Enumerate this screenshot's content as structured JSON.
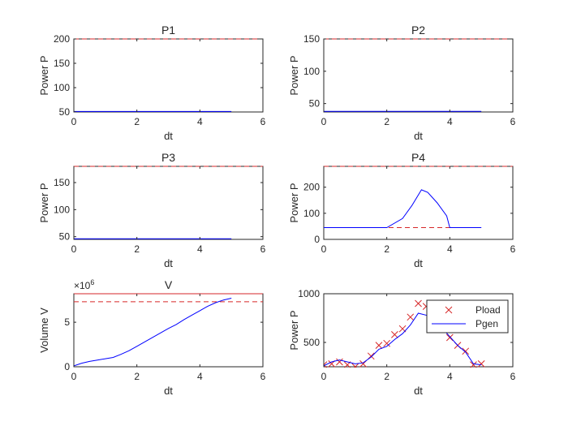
{
  "chart_data": [
    {
      "type": "line",
      "title": "P1",
      "xlabel": "dt",
      "ylabel": "Power P",
      "xlim": [
        0,
        6
      ],
      "ylim": [
        50,
        200
      ],
      "xticks": [
        "0",
        "2",
        "4",
        "6"
      ],
      "yticks": [
        "50",
        "100",
        "150",
        "200"
      ],
      "series": [
        {
          "name": "limit",
          "color": "#d62728",
          "style": "dashed",
          "x": [
            0,
            6
          ],
          "y": [
            200,
            200
          ]
        },
        {
          "name": "P1",
          "color": "#0000ff",
          "style": "solid",
          "x": [
            0,
            5
          ],
          "y": [
            51,
            51
          ]
        }
      ]
    },
    {
      "type": "line",
      "title": "P2",
      "xlabel": "dt",
      "ylabel": "Power P",
      "xlim": [
        0,
        6
      ],
      "ylim": [
        37,
        150
      ],
      "xticks": [
        "0",
        "2",
        "4",
        "6"
      ],
      "yticks": [
        "50",
        "100",
        "150"
      ],
      "series": [
        {
          "name": "limit",
          "color": "#d62728",
          "style": "dashed",
          "x": [
            0,
            6
          ],
          "y": [
            150,
            150
          ]
        },
        {
          "name": "P2",
          "color": "#0000ff",
          "style": "solid",
          "x": [
            0,
            5
          ],
          "y": [
            38,
            38
          ]
        }
      ]
    },
    {
      "type": "line",
      "title": "P3",
      "xlabel": "dt",
      "ylabel": "Power P",
      "xlim": [
        0,
        6
      ],
      "ylim": [
        45,
        180
      ],
      "xticks": [
        "0",
        "2",
        "4",
        "6"
      ],
      "yticks": [
        "50",
        "100",
        "150"
      ],
      "series": [
        {
          "name": "limit",
          "color": "#d62728",
          "style": "dashed",
          "x": [
            0,
            6
          ],
          "y": [
            180,
            180
          ]
        },
        {
          "name": "P3",
          "color": "#0000ff",
          "style": "solid",
          "x": [
            0,
            5
          ],
          "y": [
            46,
            46
          ]
        }
      ]
    },
    {
      "type": "line",
      "title": "P4",
      "xlabel": "dt",
      "ylabel": "Power P",
      "xlim": [
        0,
        6
      ],
      "ylim": [
        0,
        280
      ],
      "xticks": [
        "0",
        "2",
        "4",
        "6"
      ],
      "yticks": [
        "0",
        "100",
        "200"
      ],
      "series": [
        {
          "name": "limit-max",
          "color": "#d62728",
          "style": "dashed",
          "x": [
            0,
            6
          ],
          "y": [
            280,
            280
          ]
        },
        {
          "name": "limit-min",
          "color": "#d62728",
          "style": "dashed",
          "x": [
            0,
            4
          ],
          "y": [
            45,
            45
          ]
        },
        {
          "name": "P4",
          "color": "#0000ff",
          "style": "solid",
          "x": [
            0,
            2,
            2.5,
            2.8,
            3.1,
            3.3,
            3.6,
            3.9,
            4.0,
            5
          ],
          "y": [
            45,
            45,
            80,
            130,
            190,
            180,
            140,
            90,
            45,
            45
          ]
        }
      ]
    },
    {
      "type": "line",
      "title": "V",
      "xlabel": "dt",
      "ylabel": "Volume V",
      "exponent_label": "×10",
      "exponent_power": "6",
      "xlim": [
        0,
        6
      ],
      "ylim": [
        0,
        8.2
      ],
      "xticks": [
        "0",
        "2",
        "4",
        "6"
      ],
      "yticks": [
        "0",
        "5"
      ],
      "series": [
        {
          "name": "V-max",
          "color": "#d62728",
          "style": "solid",
          "x": [
            0,
            6
          ],
          "y": [
            8.2,
            8.2
          ]
        },
        {
          "name": "V-target",
          "color": "#d62728",
          "style": "dashed",
          "x": [
            0,
            6
          ],
          "y": [
            7.3,
            7.3
          ]
        },
        {
          "name": "V",
          "color": "#0000ff",
          "style": "solid",
          "x": [
            0,
            0.25,
            0.5,
            0.75,
            1.0,
            1.25,
            1.5,
            1.75,
            2.0,
            2.25,
            2.5,
            2.75,
            3.0,
            3.25,
            3.5,
            3.75,
            4.0,
            4.25,
            4.5,
            4.75,
            5.0
          ],
          "y": [
            0.1,
            0.4,
            0.6,
            0.75,
            0.9,
            1.05,
            1.4,
            1.8,
            2.3,
            2.8,
            3.3,
            3.8,
            4.3,
            4.75,
            5.3,
            5.8,
            6.3,
            6.8,
            7.2,
            7.5,
            7.7
          ]
        }
      ]
    },
    {
      "type": "line",
      "title": "",
      "xlabel": "dt",
      "ylabel": "Power P",
      "xlim": [
        0,
        6
      ],
      "ylim": [
        250,
        1000
      ],
      "xticks": [
        "0",
        "2",
        "4",
        "6"
      ],
      "yticks": [
        "500",
        "1000"
      ],
      "legend": {
        "position": "top-right",
        "entries": [
          "Pload",
          "Pgen"
        ]
      },
      "series": [
        {
          "name": "Pload",
          "color": "#d62728",
          "style": "markers",
          "marker": "x",
          "x": [
            0,
            0.25,
            0.5,
            0.75,
            1.0,
            1.25,
            1.5,
            1.75,
            2.0,
            2.25,
            2.5,
            2.75,
            3.0,
            3.25,
            3.5,
            3.75,
            4.0,
            4.25,
            4.5,
            4.75,
            5.0
          ],
          "y": [
            270,
            280,
            300,
            270,
            250,
            280,
            360,
            470,
            490,
            580,
            640,
            760,
            900,
            870,
            760,
            680,
            550,
            470,
            410,
            270,
            280
          ]
        },
        {
          "name": "Pgen",
          "color": "#0000ff",
          "style": "solid",
          "x": [
            0,
            0.25,
            0.5,
            0.75,
            1.0,
            1.25,
            1.5,
            1.75,
            2.0,
            2.25,
            2.5,
            2.75,
            3.0,
            3.25,
            3.5,
            3.75,
            4.0,
            4.25,
            4.5,
            4.75,
            5.0
          ],
          "y": [
            260,
            300,
            320,
            300,
            280,
            290,
            350,
            430,
            460,
            530,
            590,
            680,
            800,
            780,
            720,
            650,
            560,
            470,
            400,
            280,
            270
          ]
        }
      ]
    }
  ]
}
